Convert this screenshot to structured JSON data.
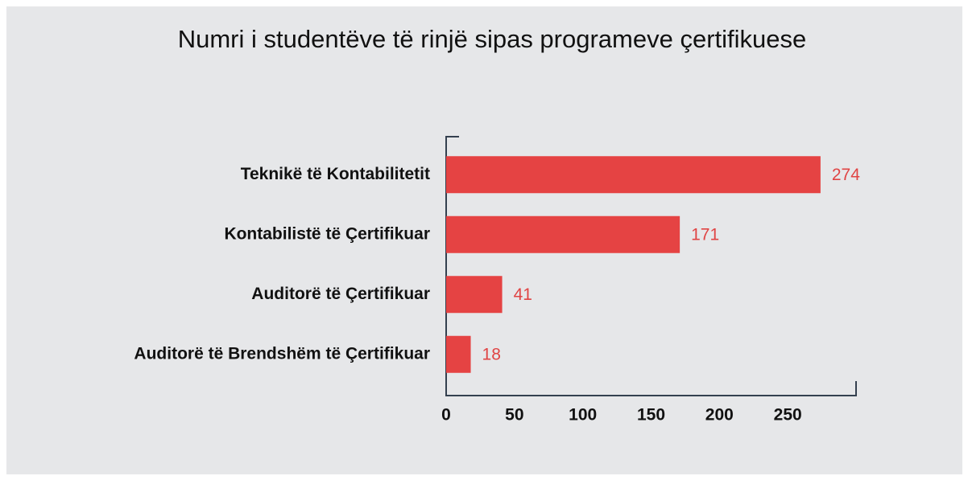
{
  "chart_data": {
    "type": "bar",
    "orientation": "horizontal",
    "title": "Numri i studentëve të rinjë sipas programeve çertifikuese",
    "categories": [
      "Teknikë të Kontabilitetit",
      "Kontabilistë të Çertifikuar",
      "Auditorë të Çertifikuar",
      "Auditorë të Brendshëm të Çertifikuar"
    ],
    "values": [
      274,
      171,
      41,
      18
    ],
    "color": "#e54343",
    "xlim": [
      0,
      300
    ],
    "xticks": [
      0,
      50,
      100,
      150,
      200,
      250
    ],
    "grid": false
  }
}
